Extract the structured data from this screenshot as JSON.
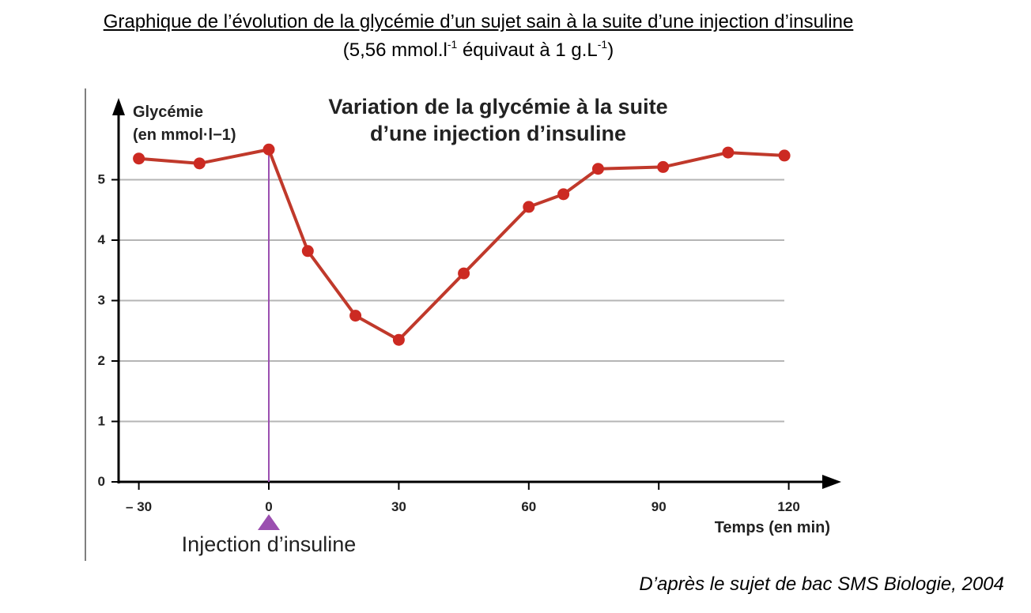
{
  "document": {
    "title": "Graphique de l’évolution de la glycémie d’un sujet sain à la suite d’une injection d’insuline",
    "subtitle_main": "(5,56 mmol.l",
    "subtitle_sup1": "-1",
    "subtitle_mid": " équivaut à 1 g.L",
    "subtitle_sup2": "-1",
    "subtitle_end": ")",
    "source": "D’après le sujet de bac SMS Biologie, 2004"
  },
  "chart_data": {
    "type": "line",
    "title_lines": [
      "Variation de la glycémie à la suite",
      "d’une injection d’insuline"
    ],
    "ylabel_lines": [
      "Glycémie",
      "(en mmol·l−1)"
    ],
    "xlabel": "Temps (en min)",
    "x_ticks": [
      -30,
      0,
      30,
      60,
      90,
      120
    ],
    "x_tick_labels": [
      "– 30",
      "0",
      "30",
      "60",
      "90",
      "120"
    ],
    "y_ticks": [
      0,
      1,
      2,
      3,
      4,
      5
    ],
    "y_tick_labels": [
      "0",
      "1",
      "2",
      "3",
      "4",
      "5"
    ],
    "xlim": [
      -35,
      130
    ],
    "ylim": [
      0,
      6
    ],
    "grid": true,
    "series": [
      {
        "x": [
          -30,
          -16,
          0,
          9,
          20,
          30,
          45,
          60,
          68,
          76,
          91,
          106,
          119
        ],
        "y": [
          5.35,
          5.27,
          5.5,
          3.82,
          2.75,
          2.35,
          3.45,
          4.55,
          4.76,
          5.18,
          5.21,
          5.45,
          5.4
        ]
      }
    ],
    "annotation": {
      "label": "Injection d’insuline",
      "x": 0
    },
    "colors": {
      "line": "#c0392b",
      "marker": "#cc2a22",
      "injection_line": "#9b4fb0",
      "injection_marker": "#9b4fb0",
      "grid": "#b5b5b5",
      "axis": "#000000"
    }
  }
}
